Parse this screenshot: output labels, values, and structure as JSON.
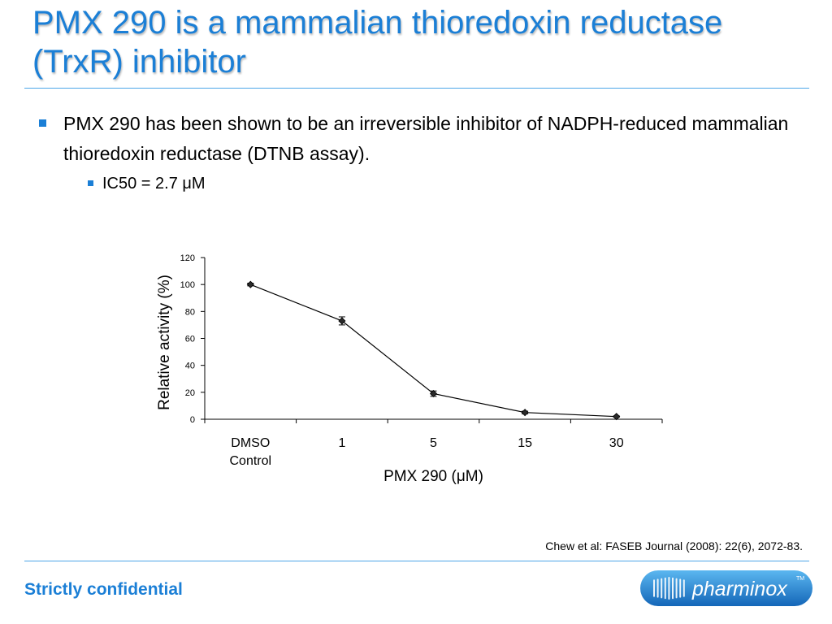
{
  "slide": {
    "title": "PMX 290 is a mammalian thioredoxin reductase (TrxR) inhibitor",
    "bullet1": "PMX 290 has been shown to be an irreversible inhibitor of NADPH-reduced mammalian thioredoxin reductase (DTNB assay).",
    "bullet2": "IC50 = 2.7 μM",
    "citation": "Chew et al: FASEB Journal (2008): 22(6), 2072-83.",
    "footer": "Strictly confidential",
    "logo_text": "pharminox",
    "logo_tm": "TM"
  },
  "colors": {
    "accent": "#1b7fd6",
    "rule": "#4da6e8"
  },
  "chart_data": {
    "type": "line",
    "categories": [
      [
        "DMSO",
        "Control"
      ],
      [
        "1"
      ],
      [
        "5"
      ],
      [
        "15"
      ],
      [
        "30"
      ]
    ],
    "values": [
      100,
      73,
      19,
      5,
      2
    ],
    "error": [
      1,
      3,
      2,
      1,
      0.5
    ],
    "xlabel": "PMX 290 (μM)",
    "ylabel": "Relative activity (%)",
    "ylim": [
      0,
      120
    ],
    "yticks": [
      0,
      20,
      40,
      60,
      80,
      100,
      120
    ],
    "grid": false,
    "marker": "diamond"
  }
}
